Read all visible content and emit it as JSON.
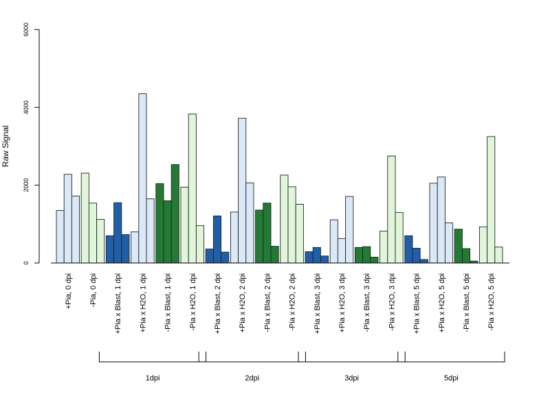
{
  "chart_data": {
    "type": "bar",
    "ylabel": "Raw Signal",
    "ylim": [
      0,
      6000
    ],
    "y_ticks": [
      "0",
      "2000",
      "4000",
      "6000"
    ],
    "grid": false,
    "categories": [
      {
        "label": "+Pia, 0 dpi",
        "values": [
          1350,
          2280,
          1720
        ],
        "color": "#dbe8f7"
      },
      {
        "label": "-Pia, 0 dpi",
        "values": [
          2310,
          1540,
          1120
        ],
        "color": "#e0f5da"
      },
      {
        "label": "+Pia x Blast, 1 dpi",
        "values": [
          700,
          1550,
          730
        ],
        "color": "#1f5fa8"
      },
      {
        "label": "+Pia x H2O, 1 dpi",
        "values": [
          800,
          4350,
          1650
        ],
        "color": "#dbe8f7"
      },
      {
        "label": "-Pia x Blast, 1 dpi",
        "values": [
          2040,
          1600,
          2530
        ],
        "color": "#237a34"
      },
      {
        "label": "-Pia x H2O, 1 dpi",
        "values": [
          1950,
          3830,
          960
        ],
        "color": "#e0f5da"
      },
      {
        "label": "+Pia x Blast, 2 dpi",
        "values": [
          360,
          1210,
          280
        ],
        "color": "#1f5fa8"
      },
      {
        "label": "+Pia x H2O, 2 dpi",
        "values": [
          1310,
          3720,
          2060
        ],
        "color": "#dbe8f7"
      },
      {
        "label": "-Pia x Blast, 2 dpi",
        "values": [
          1360,
          1540,
          430
        ],
        "color": "#237a34"
      },
      {
        "label": "-Pia x H2O, 2 dpi",
        "values": [
          2260,
          1960,
          1510
        ],
        "color": "#e0f5da"
      },
      {
        "label": "+Pia x Blast, 3 dpi",
        "values": [
          290,
          400,
          180
        ],
        "color": "#1f5fa8"
      },
      {
        "label": "+Pia x H2O, 3 dpi",
        "values": [
          1110,
          630,
          1710
        ],
        "color": "#dbe8f7"
      },
      {
        "label": "-Pia x Blast, 3 dpi",
        "values": [
          400,
          420,
          150
        ],
        "color": "#237a34"
      },
      {
        "label": "-Pia x H2O, 3 dpi",
        "values": [
          820,
          2750,
          1300
        ],
        "color": "#e0f5da"
      },
      {
        "label": "+Pia x Blast, 5 dpi",
        "values": [
          700,
          380,
          90
        ],
        "color": "#1f5fa8"
      },
      {
        "label": "+Pia x H2O, 5 dpi",
        "values": [
          2050,
          2210,
          1030
        ],
        "color": "#dbe8f7"
      },
      {
        "label": "-Pia x Blast, 5 dpi",
        "values": [
          870,
          370,
          50
        ],
        "color": "#237a34"
      },
      {
        "label": "-Pia x H2O, 5 dpi",
        "values": [
          930,
          3250,
          410
        ],
        "color": "#e0f5da"
      }
    ],
    "groups": [
      {
        "label": "1dpi",
        "from": 2,
        "to": 5
      },
      {
        "label": "2dpi",
        "from": 6,
        "to": 9
      },
      {
        "label": "3dpi",
        "from": 10,
        "to": 13
      },
      {
        "label": "5dpi",
        "from": 14,
        "to": 17
      }
    ]
  }
}
